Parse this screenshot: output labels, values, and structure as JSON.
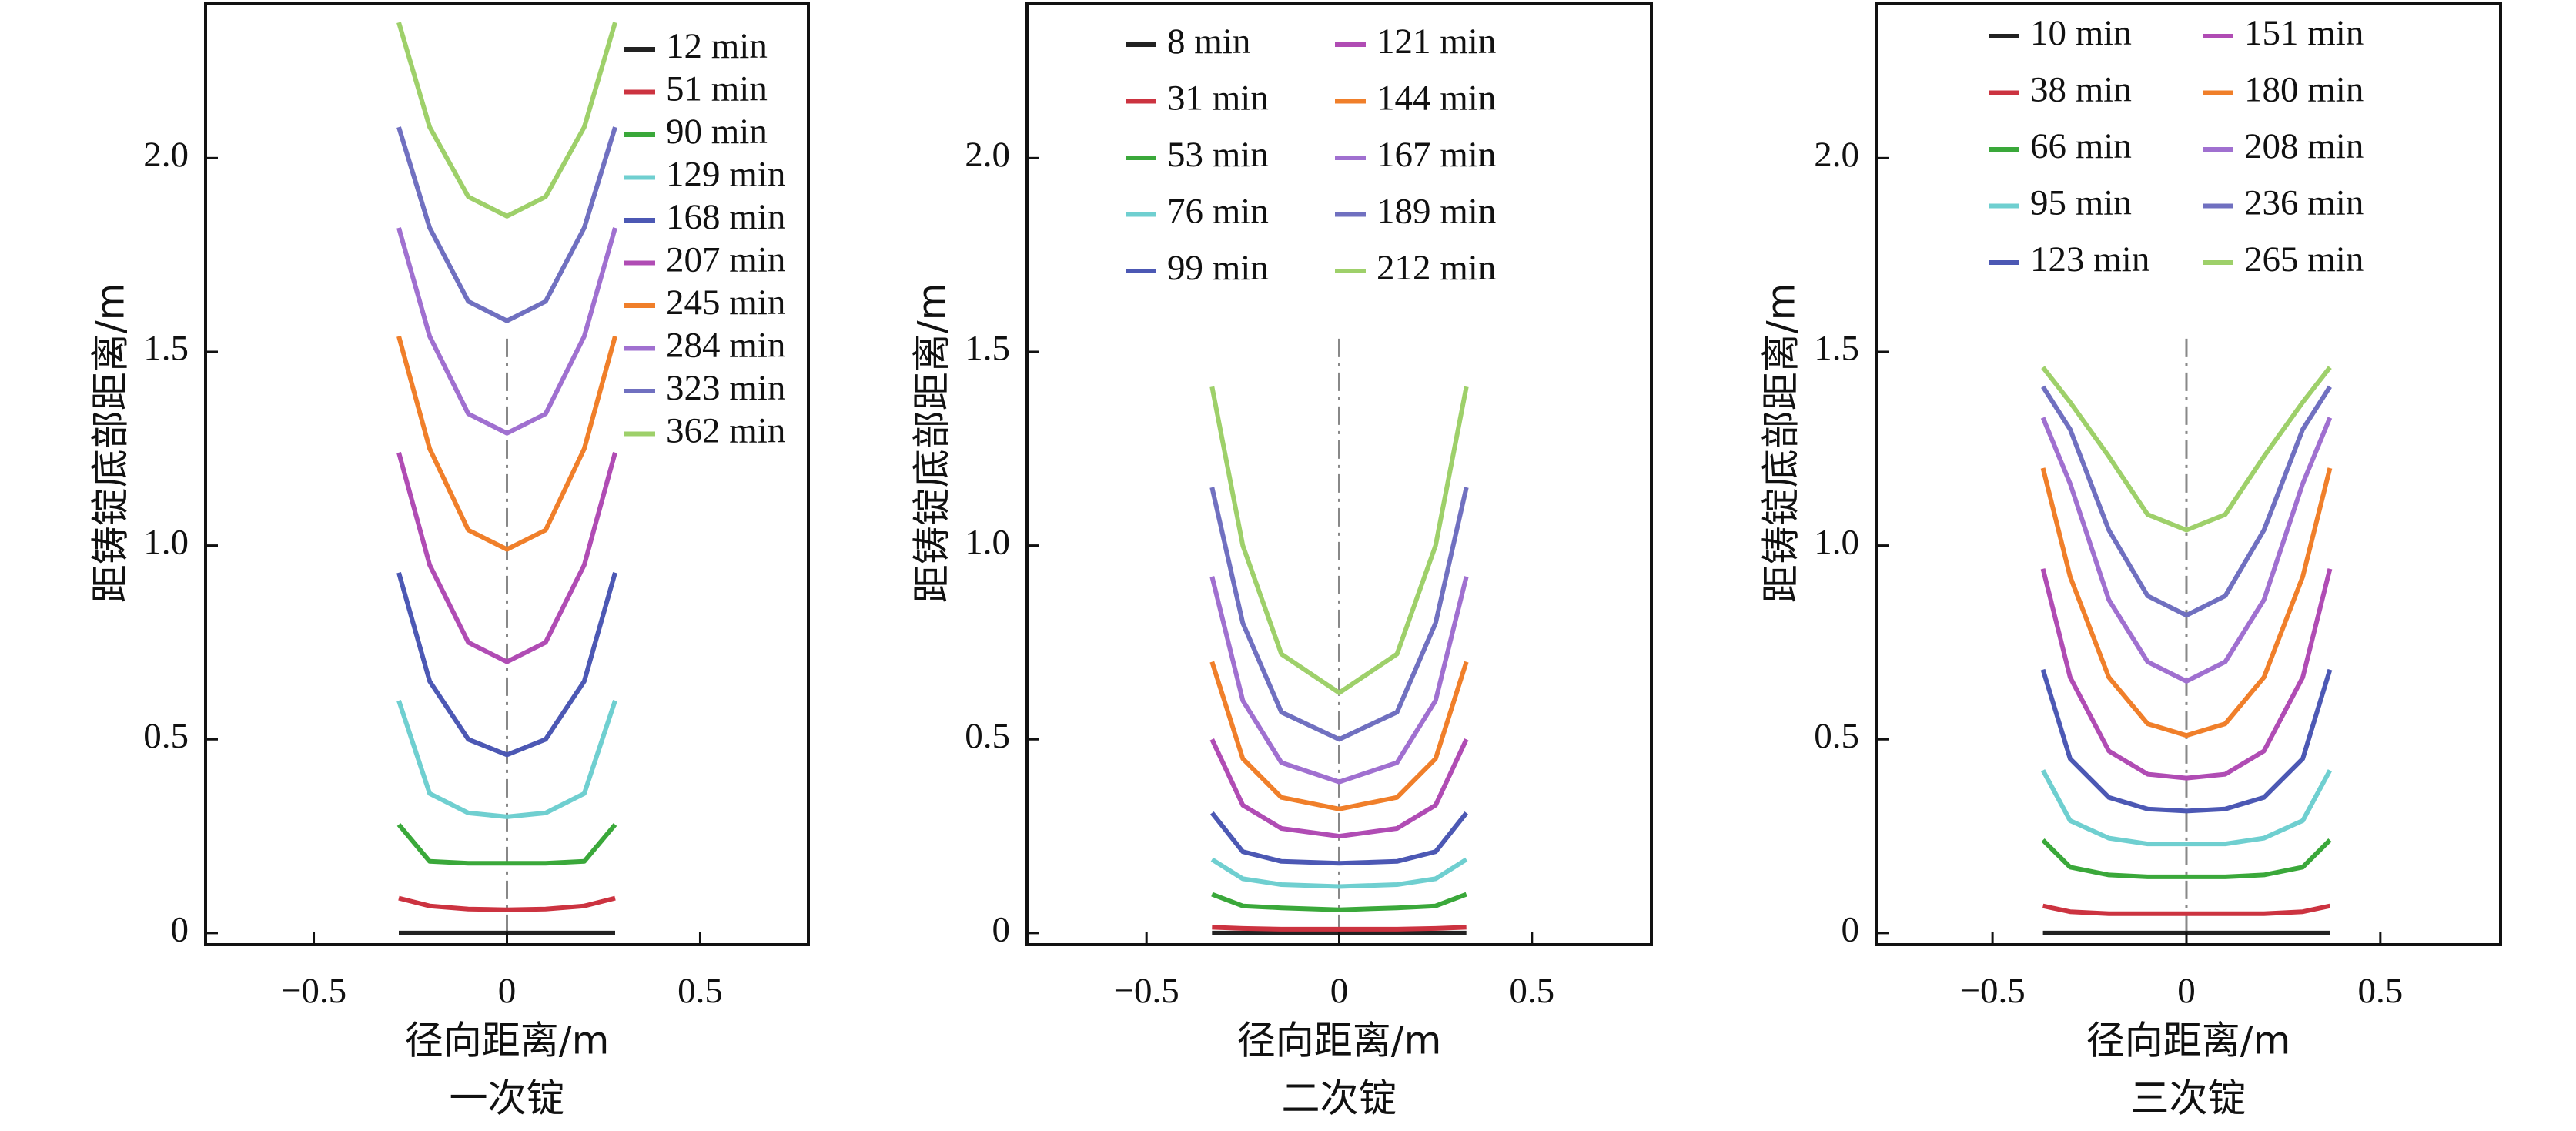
{
  "chart_data": [
    {
      "type": "line",
      "ylabel": "距铸锭底部距离/m",
      "xlabel": "径向距离/m",
      "caption": "一次锭",
      "xlim": [
        -0.78,
        0.78
      ],
      "ylim": [
        -0.03,
        2.4
      ],
      "xticks": [
        {
          "value": -0.5,
          "label": "−0.5"
        },
        0,
        0.5
      ],
      "yticks": [
        0,
        0.5,
        {
          "value": 1,
          "label": "1.0"
        },
        1.5,
        {
          "value": 2,
          "label": "2.0"
        }
      ],
      "legend": "upper right",
      "legend_columns": 1,
      "x": [
        -0.28,
        -0.2,
        -0.1,
        0,
        0.1,
        0.2,
        0.28
      ],
      "series": [
        {
          "name": "12 min",
          "color": "#222222",
          "values": [
            0,
            0,
            0,
            0,
            0,
            0,
            0
          ]
        },
        {
          "name": "51 min",
          "color": "#cc3340",
          "values": [
            0.09,
            0.07,
            0.062,
            0.06,
            0.062,
            0.07,
            0.09
          ]
        },
        {
          "name": "90 min",
          "color": "#3aa83a",
          "values": [
            0.28,
            0.185,
            0.18,
            0.18,
            0.18,
            0.185,
            0.28
          ]
        },
        {
          "name": "129 min",
          "color": "#6fcfd0",
          "values": [
            0.6,
            0.36,
            0.31,
            0.3,
            0.31,
            0.36,
            0.6
          ]
        },
        {
          "name": "168 min",
          "color": "#4c58b4",
          "values": [
            0.93,
            0.65,
            0.5,
            0.46,
            0.5,
            0.65,
            0.93
          ]
        },
        {
          "name": "207 min",
          "color": "#b04cb4",
          "values": [
            1.24,
            0.95,
            0.75,
            0.7,
            0.75,
            0.95,
            1.24
          ]
        },
        {
          "name": "245 min",
          "color": "#f07f2a",
          "values": [
            1.54,
            1.25,
            1.04,
            0.99,
            1.04,
            1.25,
            1.54
          ]
        },
        {
          "name": "284 min",
          "color": "#a070d0",
          "values": [
            1.82,
            1.54,
            1.34,
            1.29,
            1.34,
            1.54,
            1.82
          ]
        },
        {
          "name": "323 min",
          "color": "#7070c0",
          "values": [
            2.08,
            1.82,
            1.63,
            1.58,
            1.63,
            1.82,
            2.08
          ]
        },
        {
          "name": "362 min",
          "color": "#9ed06a",
          "values": [
            2.35,
            2.08,
            1.9,
            1.85,
            1.9,
            2.08,
            2.35
          ]
        }
      ]
    },
    {
      "type": "line",
      "ylabel": "距铸锭底部距离/m",
      "xlabel": "径向距离/m",
      "caption": "二次锭",
      "xlim": [
        -0.81,
        0.81
      ],
      "ylim": [
        -0.03,
        2.4
      ],
      "xticks": [
        {
          "value": -0.5,
          "label": "−0.5"
        },
        0,
        0.5
      ],
      "yticks": [
        0,
        0.5,
        {
          "value": 1,
          "label": "1.0"
        },
        1.5,
        {
          "value": 2,
          "label": "2.0"
        }
      ],
      "legend": "upper center",
      "legend_columns": 2,
      "x": [
        -0.33,
        -0.25,
        -0.15,
        0,
        0.15,
        0.25,
        0.33
      ],
      "series": [
        {
          "name": "8 min",
          "color": "#222222",
          "values": [
            0,
            0,
            0,
            0,
            0,
            0,
            0
          ]
        },
        {
          "name": "31 min",
          "color": "#cc3340",
          "values": [
            0.015,
            0.012,
            0.01,
            0.01,
            0.01,
            0.012,
            0.015
          ]
        },
        {
          "name": "53 min",
          "color": "#3aa83a",
          "values": [
            0.1,
            0.07,
            0.065,
            0.06,
            0.065,
            0.07,
            0.1
          ]
        },
        {
          "name": "76 min",
          "color": "#6fcfd0",
          "values": [
            0.19,
            0.14,
            0.125,
            0.12,
            0.125,
            0.14,
            0.19
          ]
        },
        {
          "name": "99 min",
          "color": "#4c58b4",
          "values": [
            0.31,
            0.21,
            0.185,
            0.18,
            0.185,
            0.21,
            0.31
          ]
        },
        {
          "name": "121 min",
          "color": "#b04cb4",
          "values": [
            0.5,
            0.33,
            0.27,
            0.25,
            0.27,
            0.33,
            0.5
          ]
        },
        {
          "name": "144 min",
          "color": "#f07f2a",
          "values": [
            0.7,
            0.45,
            0.35,
            0.32,
            0.35,
            0.45,
            0.7
          ]
        },
        {
          "name": "167 min",
          "color": "#a070d0",
          "values": [
            0.92,
            0.6,
            0.44,
            0.39,
            0.44,
            0.6,
            0.92
          ]
        },
        {
          "name": "189 min",
          "color": "#7070c0",
          "values": [
            1.15,
            0.8,
            0.57,
            0.5,
            0.57,
            0.8,
            1.15
          ]
        },
        {
          "name": "212 min",
          "color": "#9ed06a",
          "values": [
            1.41,
            1.0,
            0.72,
            0.62,
            0.72,
            1.0,
            1.41
          ]
        }
      ]
    },
    {
      "type": "line",
      "ylabel": "距铸锭底部距离/m",
      "xlabel": "径向距离/m",
      "caption": "三次锭",
      "xlim": [
        -0.8,
        0.81
      ],
      "ylim": [
        -0.03,
        2.4
      ],
      "xticks": [
        {
          "value": -0.5,
          "label": "−0.5"
        },
        0,
        0.5
      ],
      "yticks": [
        0,
        0.5,
        {
          "value": 1,
          "label": "1.0"
        },
        1.5,
        {
          "value": 2,
          "label": "2.0"
        }
      ],
      "legend": "upper center",
      "legend_columns": 2,
      "x": [
        -0.37,
        -0.3,
        -0.2,
        -0.1,
        0,
        0.1,
        0.2,
        0.3,
        0.37
      ],
      "series": [
        {
          "name": "10 min",
          "color": "#222222",
          "values": [
            0,
            0,
            0,
            0,
            0,
            0,
            0,
            0,
            0
          ]
        },
        {
          "name": "38 min",
          "color": "#cc3340",
          "values": [
            0.07,
            0.055,
            0.05,
            0.05,
            0.05,
            0.05,
            0.05,
            0.055,
            0.07
          ]
        },
        {
          "name": "66 min",
          "color": "#3aa83a",
          "values": [
            0.24,
            0.17,
            0.15,
            0.145,
            0.145,
            0.145,
            0.15,
            0.17,
            0.24
          ]
        },
        {
          "name": "95 min",
          "color": "#6fcfd0",
          "values": [
            0.42,
            0.29,
            0.245,
            0.23,
            0.23,
            0.23,
            0.245,
            0.29,
            0.42
          ]
        },
        {
          "name": "123 min",
          "color": "#4c58b4",
          "values": [
            0.68,
            0.45,
            0.35,
            0.32,
            0.315,
            0.32,
            0.35,
            0.45,
            0.68
          ]
        },
        {
          "name": "151 min",
          "color": "#b04cb4",
          "values": [
            0.94,
            0.66,
            0.47,
            0.41,
            0.4,
            0.41,
            0.47,
            0.66,
            0.94
          ]
        },
        {
          "name": "180 min",
          "color": "#f07f2a",
          "values": [
            1.2,
            0.92,
            0.66,
            0.54,
            0.51,
            0.54,
            0.66,
            0.92,
            1.2
          ]
        },
        {
          "name": "208 min",
          "color": "#a070d0",
          "values": [
            1.33,
            1.16,
            0.86,
            0.7,
            0.65,
            0.7,
            0.86,
            1.16,
            1.33
          ]
        },
        {
          "name": "236 min",
          "color": "#7070c0",
          "values": [
            1.41,
            1.3,
            1.04,
            0.87,
            0.82,
            0.87,
            1.04,
            1.3,
            1.41
          ]
        },
        {
          "name": "265 min",
          "color": "#9ed06a",
          "values": [
            1.46,
            1.37,
            1.23,
            1.08,
            1.04,
            1.08,
            1.23,
            1.37,
            1.46
          ]
        }
      ]
    }
  ]
}
